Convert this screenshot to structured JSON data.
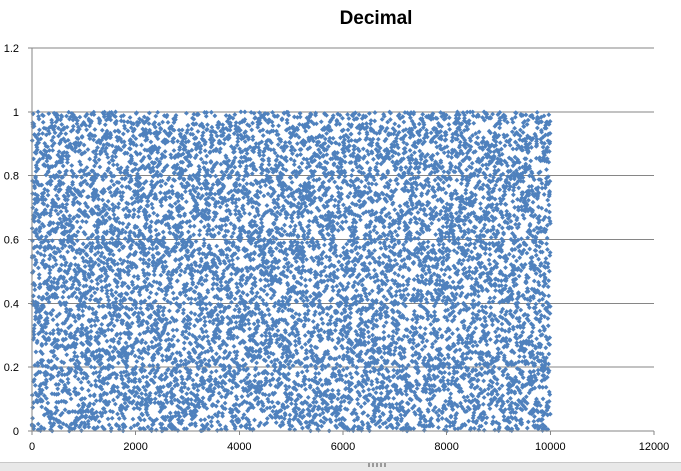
{
  "chart_data": {
    "type": "scatter",
    "title": "Decimal",
    "xlabel": "",
    "ylabel": "",
    "xlim": [
      0,
      12000
    ],
    "ylim": [
      0,
      1.2
    ],
    "x_ticks": [
      0,
      2000,
      4000,
      6000,
      8000,
      10000,
      12000
    ],
    "y_ticks": [
      0,
      0.2,
      0.4,
      0.6,
      0.8,
      1,
      1.2
    ],
    "x_tick_labels": [
      "0",
      "2000",
      "4000",
      "6000",
      "8000",
      "10000",
      "12000"
    ],
    "y_tick_labels": [
      "0",
      "0.2",
      "0.4",
      "0.6",
      "0.8",
      "1",
      "1.2"
    ],
    "grid": "horizontal",
    "legend": "none",
    "marker_color": "#4f81bd",
    "series": [
      {
        "point_count": 10000,
        "x_range": [
          1,
          10000
        ],
        "y_range": [
          0,
          1
        ],
        "distribution": "uniform random"
      }
    ]
  }
}
